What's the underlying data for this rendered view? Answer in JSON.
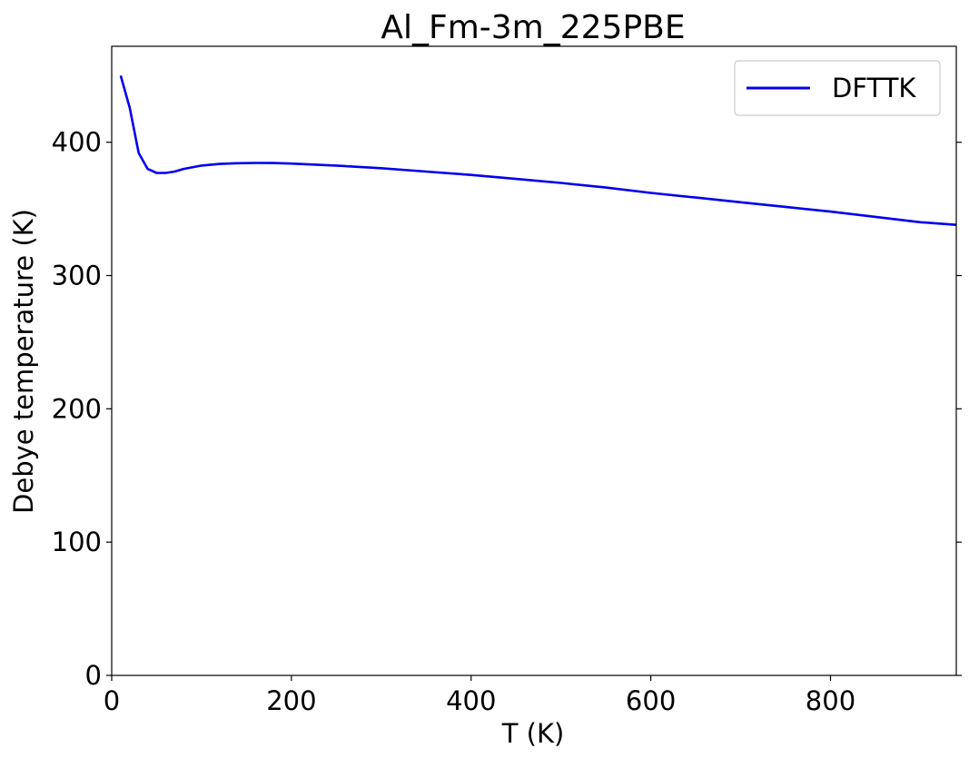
{
  "chart_data": {
    "type": "line",
    "title": "Al_Fm-3m_225PBE",
    "xlabel": "T (K)",
    "ylabel": "Debye temperature (K)",
    "xlim": [
      0,
      940
    ],
    "ylim": [
      0,
      472
    ],
    "xticks": [
      0,
      200,
      400,
      600,
      800
    ],
    "yticks": [
      0,
      100,
      200,
      300,
      400
    ],
    "grid": false,
    "legend": "top-right",
    "series": [
      {
        "name": "DFTTK",
        "color": "#0000ee",
        "x": [
          10,
          20,
          30,
          40,
          50,
          60,
          70,
          80,
          100,
          120,
          140,
          160,
          180,
          200,
          250,
          300,
          350,
          400,
          450,
          500,
          550,
          600,
          650,
          700,
          750,
          800,
          850,
          900,
          940
        ],
        "y": [
          450,
          426,
          392,
          380,
          377,
          377,
          378,
          380,
          382.5,
          383.7,
          384.3,
          384.5,
          384.4,
          384,
          382.5,
          380.5,
          378,
          375.5,
          372.5,
          369.5,
          366,
          362,
          358.5,
          355,
          351.5,
          348,
          344,
          340,
          338
        ]
      }
    ]
  }
}
